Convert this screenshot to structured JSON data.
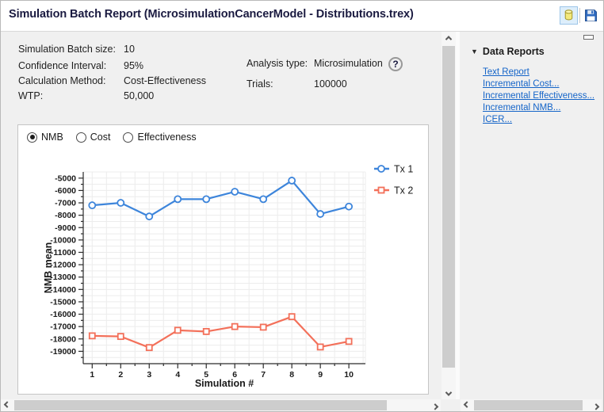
{
  "window": {
    "title": "Simulation Batch Report (MicrosimulationCancerModel - Distributions.trex)"
  },
  "icons": {
    "database": "yellow-db-cylinder",
    "save": "floppy-disk",
    "help": "?",
    "data_reports_collapse": "▼",
    "panel_minimize": "horizontal-bar",
    "scroll_arrows": [
      "chevron-up",
      "chevron-down",
      "chevron-left",
      "chevron-right"
    ]
  },
  "info": {
    "rows_left": [
      {
        "label": "Simulation Batch size:",
        "value": "10"
      },
      {
        "label": "Confidence Interval:",
        "value": "95%"
      },
      {
        "label": "Calculation Method:",
        "value": "Cost-Effectiveness"
      },
      {
        "label": "WTP:",
        "value": "50,000"
      }
    ],
    "rows_right": [
      {
        "label": "Analysis type:",
        "value": "Microsimulation"
      },
      {
        "label": "Trials:",
        "value": "100000"
      }
    ],
    "help_icon_glyph": "?"
  },
  "view_options": {
    "radios": [
      {
        "label": "NMB",
        "selected": true
      },
      {
        "label": "Cost",
        "selected": false
      },
      {
        "label": "Effectiveness",
        "selected": false
      }
    ]
  },
  "chart_data": {
    "type": "line",
    "title": "",
    "xlabel": "Simulation #",
    "ylabel": "NMB mean",
    "x": [
      1,
      2,
      3,
      4,
      5,
      6,
      7,
      8,
      9,
      10
    ],
    "series": [
      {
        "name": "Tx 1",
        "color": "#3D85DB",
        "marker": "circle",
        "values": [
          -7200,
          -7000,
          -8100,
          -6700,
          -6700,
          -6100,
          -6700,
          -5200,
          -7900,
          -7300
        ]
      },
      {
        "name": "Tx 2",
        "color": "#F3705A",
        "marker": "square",
        "values": [
          -17750,
          -17800,
          -18700,
          -17300,
          -17400,
          -17000,
          -17050,
          -16200,
          -18650,
          -18200
        ]
      }
    ],
    "xlim": [
      0.686,
      10.58
    ],
    "ylim": [
      -20000,
      -4500
    ],
    "xticks": [
      1,
      2,
      3,
      4,
      5,
      6,
      7,
      8,
      9,
      10
    ],
    "yticks": [
      -5000,
      -6000,
      -7000,
      -8000,
      -9000,
      -10000,
      -11000,
      -12000,
      -13000,
      -14000,
      -15000,
      -16000,
      -17000,
      -18000,
      -19000
    ],
    "grid": true,
    "legend_position": "top-right"
  },
  "sidebar": {
    "header": "Data Reports",
    "collapse_icon_glyph": "▼",
    "links": [
      "Text Report",
      "Incremental Cost...",
      "Incremental Effectiveness...",
      "Incremental NMB...",
      "ICER..."
    ]
  },
  "colors": {
    "link": "#1464C8",
    "title_text": "#1a1a40",
    "series1": "#3D85DB",
    "series2": "#F3705A",
    "grid": "#ececec"
  }
}
